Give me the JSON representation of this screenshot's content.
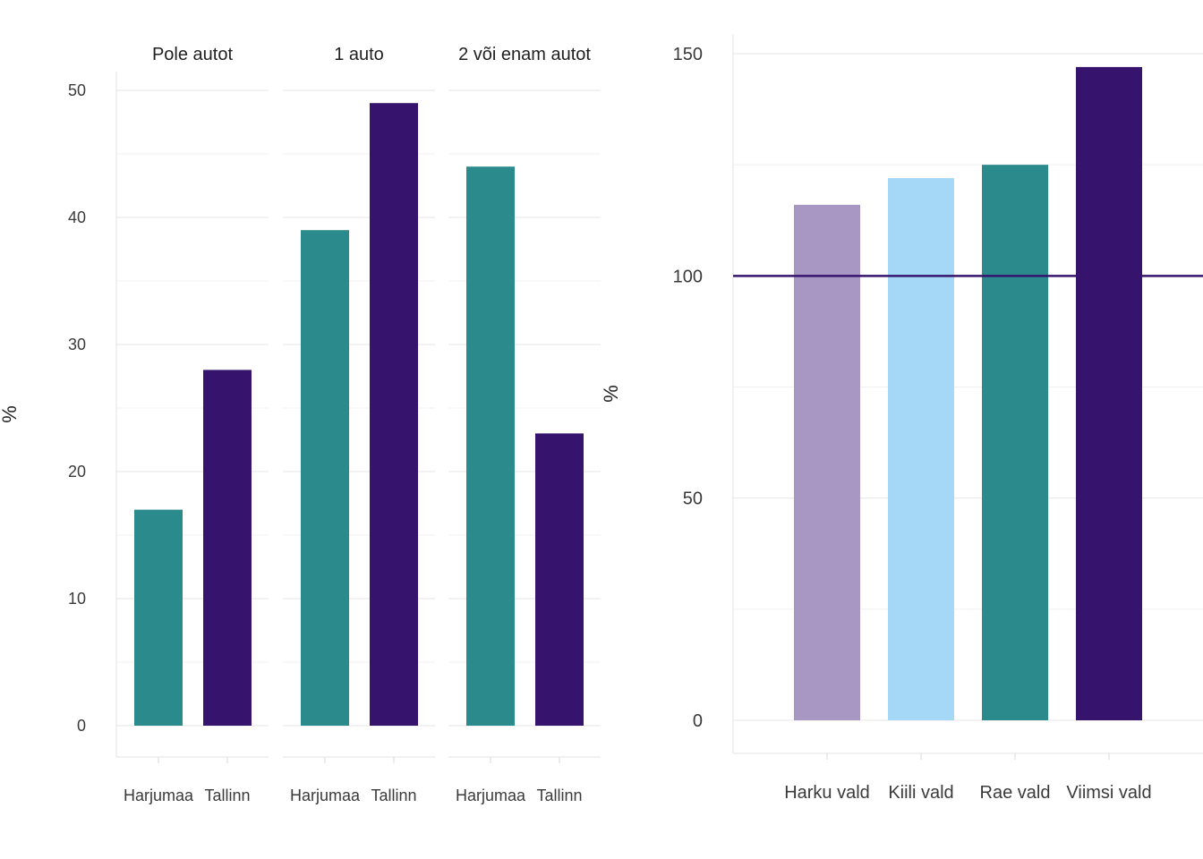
{
  "chart_data": [
    {
      "type": "bar",
      "ylabel": "%",
      "ylim": [
        0,
        50
      ],
      "yticks": [
        0,
        10,
        20,
        30,
        40,
        50
      ],
      "categories": [
        "Harjumaa",
        "Tallinn"
      ],
      "facets": [
        {
          "title": "Pole autot",
          "values": [
            17,
            28
          ]
        },
        {
          "title": "1 auto",
          "values": [
            39,
            49
          ]
        },
        {
          "title": "2 või enam autot",
          "values": [
            44,
            23
          ]
        }
      ],
      "colors": [
        "#2b8a8c",
        "#36146e"
      ],
      "grid": true
    },
    {
      "type": "bar",
      "ylabel": "%",
      "ylim": [
        0,
        150
      ],
      "yticks": [
        0,
        50,
        100,
        150
      ],
      "categories": [
        "Harku vald",
        "Kiili vald",
        "Rae vald",
        "Viimsi vald"
      ],
      "values": [
        116,
        122,
        125,
        147
      ],
      "colors": [
        "#a897c3",
        "#a5d8f7",
        "#2b8a8c",
        "#36146e"
      ],
      "reference_line": {
        "y": 100,
        "color": "#36146e"
      },
      "grid": true
    }
  ]
}
